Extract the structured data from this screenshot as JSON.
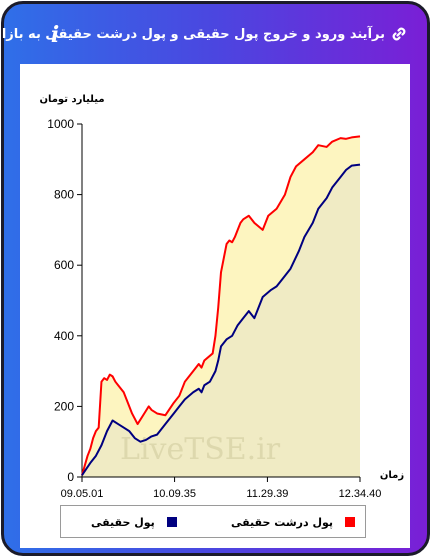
{
  "header": {
    "title": "برآیند ورود و خروج پول حقیقی و پول درشت حقیقی به بازار",
    "info_glyph": "i",
    "link_icon": "link-icon",
    "info_icon": "info-icon"
  },
  "watermark": "LiveTSE.ir",
  "colors": {
    "accent_left": "#2f6fe8",
    "accent_right": "#7a1fd6",
    "real_money": "#000080",
    "big_real_money": "#ff0000",
    "fill_between": "#fdf5c0",
    "fill_under": "#f0ebc4"
  },
  "legend": {
    "items": [
      {
        "label": "پول حقیقی",
        "color": "#000080"
      },
      {
        "label": "پول درشت حقیقی",
        "color": "#ff0000"
      }
    ]
  },
  "chart_data": {
    "type": "area",
    "ylabel": "میلیارد تومان",
    "xlabel": "زمان",
    "ylim": [
      0,
      1000
    ],
    "yticks": [
      0,
      200,
      400,
      600,
      800,
      1000
    ],
    "xlim": [
      0,
      100
    ],
    "xticks": [
      {
        "pos": 0,
        "label": "09.05.01"
      },
      {
        "pos": 33.3,
        "label": "10.09.35"
      },
      {
        "pos": 66.7,
        "label": "11.29.39"
      },
      {
        "pos": 100,
        "label": "12.34.40"
      }
    ],
    "grid": false,
    "legend_position": "bottom",
    "series": [
      {
        "name": "پول درشت حقیقی",
        "color": "#ff0000",
        "x": [
          0,
          2,
          3,
          4,
          5,
          6,
          7,
          8,
          9,
          10,
          11,
          12,
          13,
          15,
          17,
          18,
          20,
          22,
          24,
          25,
          27,
          30,
          33,
          35,
          37,
          40,
          42,
          43,
          44,
          47,
          48,
          49,
          50,
          52,
          53,
          54,
          55,
          56,
          57,
          58,
          60,
          62,
          65,
          67,
          70,
          73,
          75,
          77,
          80,
          83,
          85,
          88,
          90,
          93,
          95,
          97,
          100
        ],
        "y": [
          5,
          60,
          80,
          110,
          130,
          140,
          270,
          280,
          275,
          290,
          285,
          270,
          260,
          240,
          200,
          180,
          150,
          175,
          200,
          190,
          180,
          175,
          210,
          230,
          270,
          300,
          320,
          310,
          330,
          350,
          400,
          480,
          580,
          660,
          670,
          665,
          680,
          700,
          720,
          730,
          740,
          720,
          700,
          740,
          760,
          800,
          850,
          880,
          900,
          920,
          940,
          935,
          950,
          960,
          958,
          962,
          965
        ]
      },
      {
        "name": "پول حقیقی",
        "color": "#000080",
        "x": [
          0,
          3,
          5,
          7,
          9,
          11,
          13,
          15,
          17,
          19,
          21,
          23,
          25,
          27,
          30,
          33,
          35,
          37,
          40,
          42,
          43,
          44,
          46,
          48,
          49,
          50,
          52,
          54,
          56,
          58,
          60,
          62,
          63,
          65,
          68,
          70,
          72,
          75,
          78,
          80,
          83,
          85,
          88,
          90,
          93,
          95,
          97,
          100
        ],
        "y": [
          5,
          40,
          60,
          90,
          130,
          160,
          150,
          140,
          130,
          110,
          100,
          105,
          115,
          120,
          150,
          180,
          200,
          220,
          240,
          250,
          240,
          260,
          270,
          300,
          330,
          370,
          390,
          400,
          430,
          450,
          470,
          450,
          470,
          510,
          530,
          540,
          560,
          590,
          640,
          680,
          720,
          760,
          790,
          820,
          850,
          870,
          882,
          885
        ]
      }
    ]
  }
}
